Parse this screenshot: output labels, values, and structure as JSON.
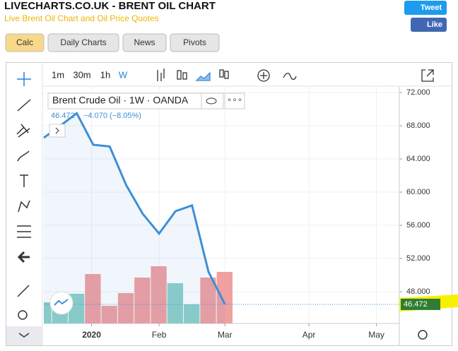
{
  "header": {
    "title": "LIVECHARTS.CO.UK - BRENT OIL CHART",
    "subtitle": "Live Brent Oil Chart and Oil Price Quotes"
  },
  "social": {
    "tweet": "Tweet",
    "like": "Like"
  },
  "tabs": [
    "Calc",
    "Daily Charts",
    "News",
    "Pivots"
  ],
  "toolbar": {
    "intervals": [
      "1m",
      "30m",
      "1h",
      "W"
    ]
  },
  "chart_data": {
    "type": "line",
    "title": "Brent Crude Oil · 1W · OANDA",
    "quote": {
      "last": "46.472",
      "change": "−4.070 (−8.05%)"
    },
    "x": [
      0,
      1,
      2,
      3,
      4,
      5,
      6,
      7,
      8,
      9,
      10,
      11
    ],
    "values": [
      66.55,
      68.0,
      69.5,
      65.7,
      65.5,
      60.85,
      57.4,
      55.0,
      57.7,
      58.4,
      50.4,
      46.472
    ],
    "color": "#3d8fd6",
    "last_price": {
      "value": 46.472,
      "label": "46.472"
    },
    "volume": {
      "values": [
        30,
        32,
        42,
        70,
        25,
        43,
        65,
        81,
        57,
        27,
        65,
        73
      ],
      "colors": [
        "#8fd0c8",
        "#8fd0c8",
        "#8fd0c8",
        "#f0a0a0",
        "#f0a0a0",
        "#f0a0a0",
        "#f0a0a0",
        "#f0a0a0",
        "#8fd0c8",
        "#8fd0c8",
        "#f0a0a0",
        "#f0a0a0"
      ],
      "ylim": [
        0,
        335
      ]
    },
    "xlim": [
      0,
      21.59
    ],
    "xticks": [
      {
        "value": 2.9,
        "label": "2020"
      },
      {
        "value": 7,
        "label": "Feb"
      },
      {
        "value": 11,
        "label": "Mar"
      },
      {
        "value": 16.1,
        "label": "Apr"
      },
      {
        "value": 20.2,
        "label": "May"
      }
    ],
    "ylim": [
      44.17,
      72.68
    ],
    "yticks": [
      {
        "value": 48,
        "label": "48.000"
      },
      {
        "value": 52,
        "label": "52.000"
      },
      {
        "value": 56,
        "label": "56.000"
      },
      {
        "value": 60,
        "label": "60.000"
      },
      {
        "value": 64,
        "label": "64.000"
      },
      {
        "value": 68,
        "label": "68.000"
      },
      {
        "value": 72,
        "label": "72.000"
      }
    ],
    "grid": true
  }
}
